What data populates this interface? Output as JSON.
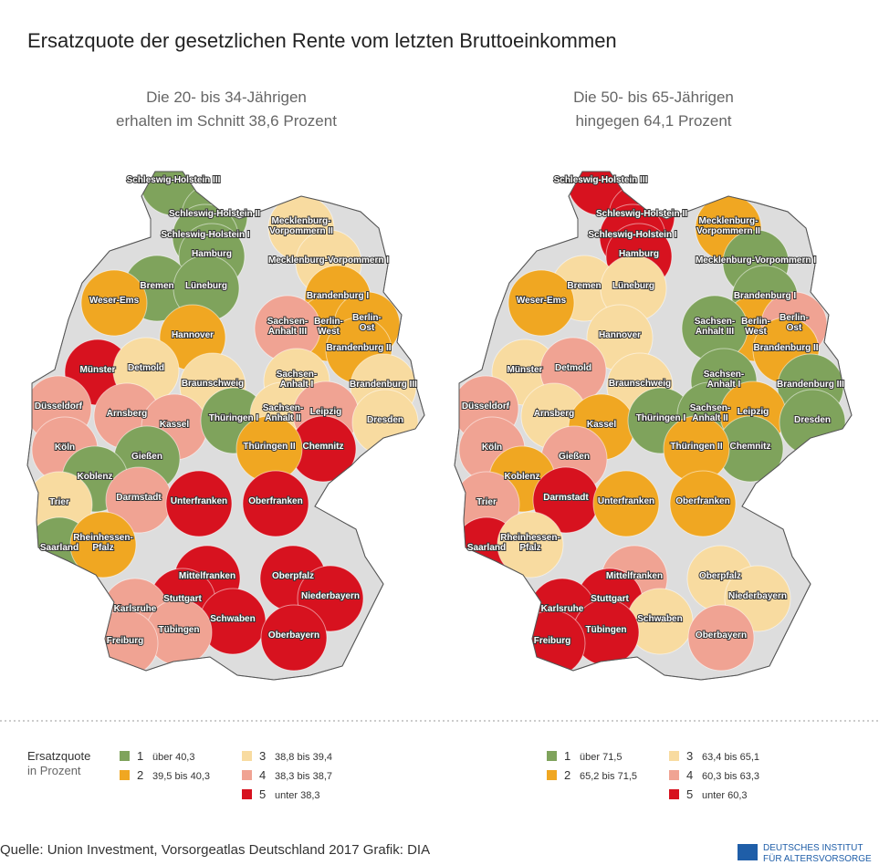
{
  "title": "Ersatzquote der gesetzlichen Rente vom letzten Bruttoeinkommen",
  "maps": [
    {
      "subtitle": [
        "Die 20- bis 34-Jährigen",
        "erhalten im Schnitt 38,6 Prozent"
      ],
      "classes": [
        1,
        1,
        1,
        1,
        3,
        3,
        1,
        1,
        2,
        2,
        2,
        2,
        2,
        4,
        2,
        5,
        3,
        3,
        3,
        3,
        4,
        4,
        4,
        1,
        3,
        4,
        3,
        4,
        5,
        2,
        1,
        1,
        3,
        4,
        5,
        5,
        1,
        2,
        5,
        5,
        5,
        4,
        5,
        5,
        4,
        5,
        4
      ],
      "legend": [
        {
          "class": "1",
          "label": "über 40,3"
        },
        {
          "class": "2",
          "label": "39,5 bis 40,3"
        },
        {
          "class": "3",
          "label": "38,8 bis 39,4"
        },
        {
          "class": "4",
          "label": "38,3 bis 38,7"
        },
        {
          "class": "5",
          "label": "unter 38,3"
        }
      ]
    },
    {
      "subtitle": [
        "Die 50- bis 65-Jährigen",
        "hingegen 64,1 Prozent"
      ],
      "classes": [
        5,
        5,
        5,
        5,
        2,
        1,
        3,
        3,
        2,
        1,
        2,
        4,
        3,
        1,
        2,
        3,
        4,
        3,
        1,
        1,
        4,
        3,
        2,
        1,
        1,
        2,
        1,
        4,
        1,
        2,
        4,
        2,
        4,
        5,
        2,
        2,
        5,
        3,
        4,
        3,
        5,
        5,
        3,
        3,
        5,
        4,
        5
      ],
      "legend": [
        {
          "class": "1",
          "label": "über 71,5"
        },
        {
          "class": "2",
          "label": "65,2 bis 71,5"
        },
        {
          "class": "3",
          "label": "63,4 bis 65,1"
        },
        {
          "class": "4",
          "label": "60,3 bis 63,3"
        },
        {
          "class": "5",
          "label": "unter 60,3"
        }
      ]
    }
  ],
  "regions": [
    [
      "Schleswig-Holstein III"
    ],
    [
      "Schleswig-Holstein II"
    ],
    [
      "Schleswig-Holstein I"
    ],
    [
      "Hamburg"
    ],
    [
      "Mecklenburg-",
      "Vorpommern II"
    ],
    [
      "Mecklenburg-Vorpommern I"
    ],
    [
      "Bremen"
    ],
    [
      "Lüneburg"
    ],
    [
      "Weser-Ems"
    ],
    [
      "Brandenburg I"
    ],
    [
      "Berlin-",
      "West"
    ],
    [
      "Berlin-",
      "Ost"
    ],
    [
      "Hannover"
    ],
    [
      "Sachsen-",
      "Anhalt III"
    ],
    [
      "Brandenburg II"
    ],
    [
      "Münster"
    ],
    [
      "Detmold"
    ],
    [
      "Braunschweig"
    ],
    [
      "Sachsen-",
      "Anhalt I"
    ],
    [
      "Brandenburg III"
    ],
    [
      "Düsseldorf"
    ],
    [
      "Arnsberg"
    ],
    [
      "Kassel"
    ],
    [
      "Thüringen I"
    ],
    [
      "Sachsen-",
      "Anhalt II"
    ],
    [
      "Leipzig"
    ],
    [
      "Dresden"
    ],
    [
      "Köln"
    ],
    [
      "Chemnitz"
    ],
    [
      "Thüringen II"
    ],
    [
      "Gießen"
    ],
    [
      "Koblenz"
    ],
    [
      "Trier"
    ],
    [
      "Darmstadt"
    ],
    [
      "Unterfranken"
    ],
    [
      "Oberfranken"
    ],
    [
      "Saarland"
    ],
    [
      "Rheinhessen-",
      "Pfalz"
    ],
    [
      "Mittelfranken"
    ],
    [
      "Oberpfalz"
    ],
    [
      "Stuttgart"
    ],
    [
      "Karlsruhe"
    ],
    [
      "Niederbayern"
    ],
    [
      "Schwaben"
    ],
    [
      "Tübingen"
    ],
    [
      "Oberbayern"
    ],
    [
      "Freiburg"
    ]
  ],
  "class_colors": [
    "#7fa35c",
    "#f0a722",
    "#f8dba0",
    "#f0a393",
    "#d7121f"
  ],
  "legend_title": [
    "Ersatzquote",
    "in Prozent"
  ],
  "source": "Quelle: Union Investment, Vorsorgeatlas Deutschland 2017  Grafik: DIA",
  "logo": [
    "DEUTSCHES INSTITUT",
    "FÜR ALTERSVORSORGE"
  ]
}
